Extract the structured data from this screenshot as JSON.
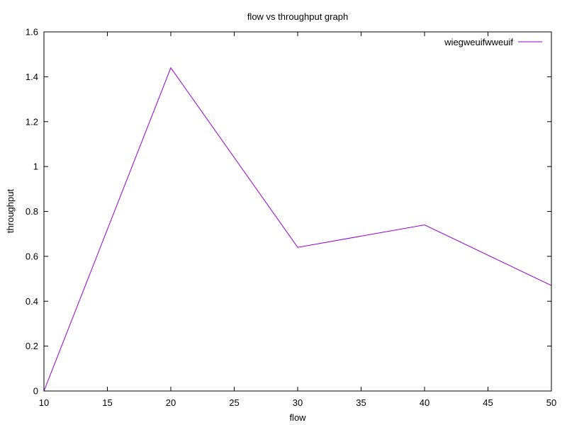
{
  "chart_data": {
    "type": "line",
    "title": "flow vs throughput graph",
    "xlabel": "flow",
    "ylabel": "throughput",
    "xlim": [
      10,
      50
    ],
    "ylim": [
      0,
      1.6
    ],
    "xticks": [
      10,
      15,
      20,
      25,
      30,
      35,
      40,
      45,
      50
    ],
    "yticks": [
      0,
      0.2,
      0.4,
      0.6,
      0.8,
      1,
      1.2,
      1.4,
      1.6
    ],
    "grid": false,
    "legend_position": "top-right",
    "series": [
      {
        "name": "wiegweuifwweuif",
        "color": "#9400d3",
        "x": [
          10,
          20,
          30,
          40,
          50
        ],
        "y": [
          0,
          1.44,
          0.64,
          0.74,
          0.47
        ]
      }
    ]
  }
}
